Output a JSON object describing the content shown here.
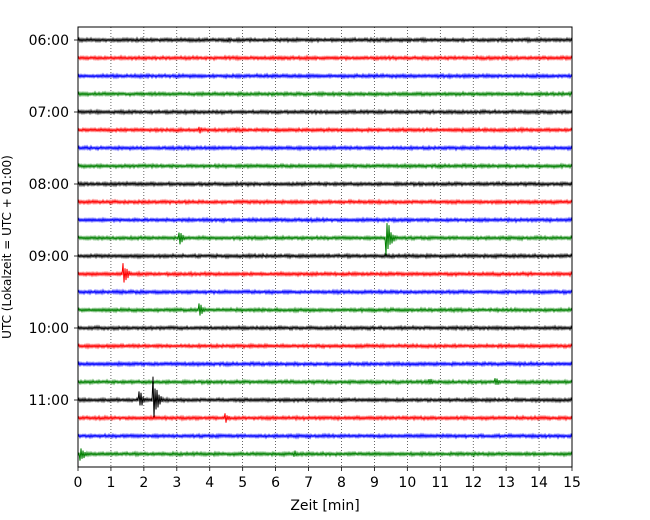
{
  "chart_data": {
    "type": "line",
    "title": "",
    "xlabel": "Zeit  [min]",
    "ylabel": "UTC (Lokalzeit = UTC + 01:00)",
    "xlim": [
      0,
      15
    ],
    "x_ticks": [
      "0",
      "1",
      "2",
      "3",
      "4",
      "5",
      "6",
      "7",
      "8",
      "9",
      "10",
      "11",
      "12",
      "13",
      "14",
      "15"
    ],
    "y_tick_labels": [
      "06:00",
      "07:00",
      "08:00",
      "09:00",
      "10:00",
      "11:00"
    ],
    "trace_interval_min": 15,
    "start_time": "06:00",
    "vertical_grid": "dotted",
    "trace_colors": [
      "#000000",
      "#ff0000",
      "#0000ff",
      "#008000"
    ],
    "traces": [
      {
        "time": "06:00",
        "color": "#000000",
        "events": [
          {
            "t": 4.6,
            "amp": 0.15
          }
        ]
      },
      {
        "time": "06:15",
        "color": "#ff0000",
        "events": []
      },
      {
        "time": "06:30",
        "color": "#0000ff",
        "events": []
      },
      {
        "time": "06:45",
        "color": "#008000",
        "events": []
      },
      {
        "time": "07:00",
        "color": "#000000",
        "events": []
      },
      {
        "time": "07:15",
        "color": "#ff0000",
        "events": [
          {
            "t": 3.7,
            "amp": 0.2
          },
          {
            "t": 4.8,
            "amp": 0.15
          }
        ]
      },
      {
        "time": "07:30",
        "color": "#0000ff",
        "events": [
          {
            "t": 13.0,
            "amp": 0.15
          }
        ]
      },
      {
        "time": "07:45",
        "color": "#008000",
        "events": []
      },
      {
        "time": "08:00",
        "color": "#000000",
        "events": []
      },
      {
        "time": "08:15",
        "color": "#ff0000",
        "events": []
      },
      {
        "time": "08:30",
        "color": "#0000ff",
        "events": [
          {
            "t": 4.4,
            "amp": 0.15
          }
        ]
      },
      {
        "time": "08:45",
        "color": "#008000",
        "events": [
          {
            "t": 3.1,
            "amp": 0.4
          },
          {
            "t": 9.4,
            "amp": 1.1
          }
        ]
      },
      {
        "time": "09:00",
        "color": "#000000",
        "events": []
      },
      {
        "time": "09:15",
        "color": "#ff0000",
        "events": [
          {
            "t": 1.4,
            "amp": 0.65
          }
        ]
      },
      {
        "time": "09:30",
        "color": "#0000ff",
        "events": []
      },
      {
        "time": "09:45",
        "color": "#008000",
        "events": [
          {
            "t": 3.7,
            "amp": 0.45
          }
        ]
      },
      {
        "time": "10:00",
        "color": "#000000",
        "events": []
      },
      {
        "time": "10:15",
        "color": "#ff0000",
        "events": []
      },
      {
        "time": "10:30",
        "color": "#0000ff",
        "events": []
      },
      {
        "time": "10:45",
        "color": "#008000",
        "events": [
          {
            "t": 10.7,
            "amp": 0.2
          },
          {
            "t": 12.7,
            "amp": 0.25
          }
        ]
      },
      {
        "time": "11:00",
        "color": "#000000",
        "events": [
          {
            "t": 1.9,
            "amp": 0.5
          },
          {
            "t": 2.3,
            "amp": 1.35
          }
        ]
      },
      {
        "time": "11:15",
        "color": "#ff0000",
        "events": [
          {
            "t": 4.5,
            "amp": 0.3
          }
        ]
      },
      {
        "time": "11:30",
        "color": "#0000ff",
        "events": []
      },
      {
        "time": "11:45",
        "color": "#008000",
        "events": [
          {
            "t": 0.1,
            "amp": 0.45
          },
          {
            "t": 6.6,
            "amp": 0.2
          }
        ]
      }
    ]
  }
}
